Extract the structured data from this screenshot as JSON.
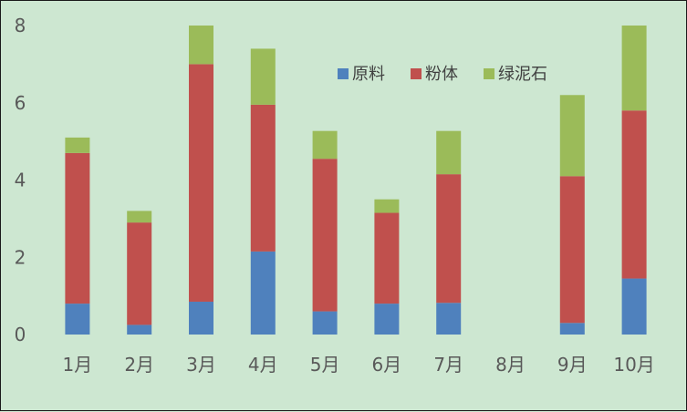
{
  "chart_data": {
    "type": "bar",
    "stacked": true,
    "categories": [
      "1月",
      "2月",
      "3月",
      "4月",
      "5月",
      "6月",
      "7月",
      "8月",
      "9月",
      "10月"
    ],
    "series": [
      {
        "name": "原料",
        "color": "#4f81bd",
        "values": [
          0.8,
          0.25,
          0.85,
          2.15,
          0.6,
          0.8,
          0.82,
          0,
          0.3,
          1.45
        ]
      },
      {
        "name": "粉体",
        "color": "#c0504d",
        "values": [
          3.9,
          2.65,
          6.15,
          3.8,
          3.95,
          2.35,
          3.33,
          0,
          3.8,
          4.35
        ]
      },
      {
        "name": "绿泥石",
        "color": "#9bbb59",
        "values": [
          0.4,
          0.3,
          1.0,
          1.45,
          0.72,
          0.35,
          1.12,
          0,
          2.1,
          2.2
        ]
      }
    ],
    "yticks": [
      0,
      2,
      4,
      6,
      8
    ],
    "ylim": [
      0,
      8
    ],
    "grid": false,
    "legend_position": "top-right",
    "background": "#cde7d1",
    "title": "",
    "xlabel": "",
    "ylabel": ""
  }
}
